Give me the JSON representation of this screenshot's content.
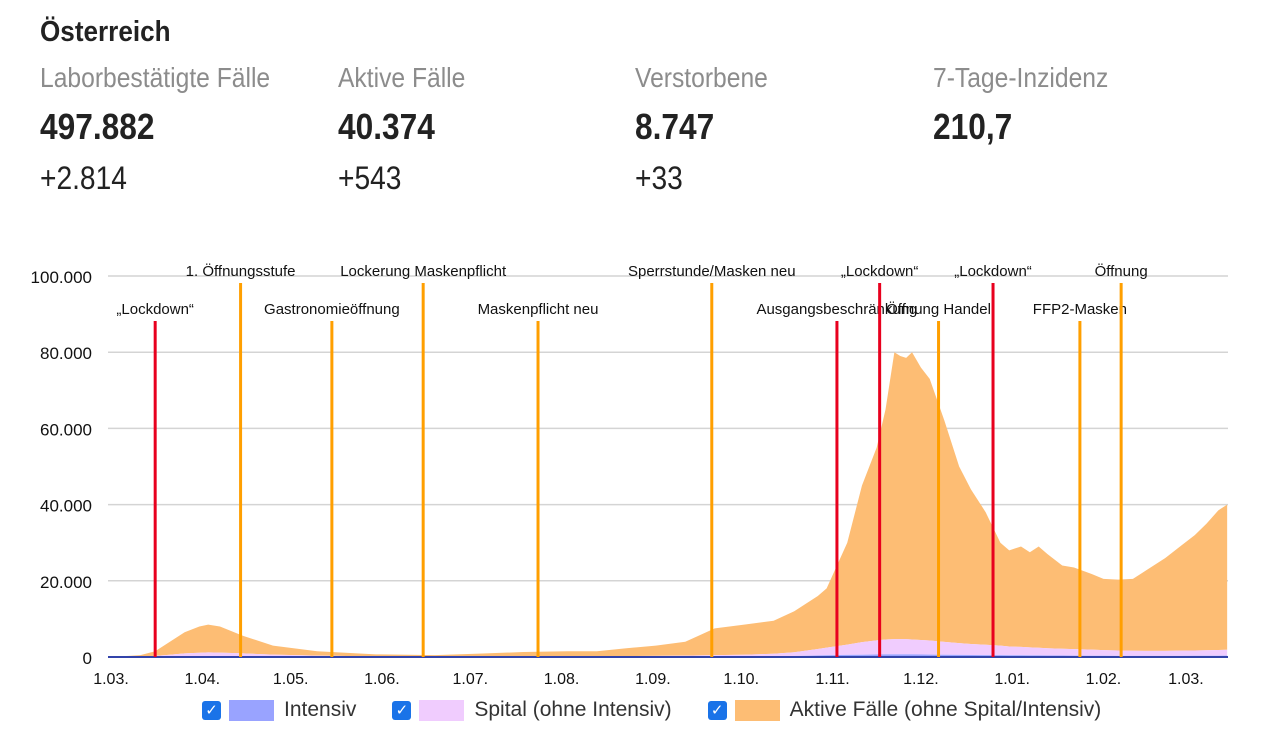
{
  "title": "Österreich",
  "stats": [
    {
      "label": "Laborbestätigte Fälle",
      "value": "497.882",
      "delta": "+2.814"
    },
    {
      "label": "Aktive Fälle",
      "value": "40.374",
      "delta": "+543"
    },
    {
      "label": "Verstorbene",
      "value": "8.747",
      "delta": "+33"
    },
    {
      "label": "7-Tage-Inzidenz",
      "value": "210,7",
      "delta": ""
    }
  ],
  "colors": {
    "intensiv": "#99a3ff",
    "spital": "#f0ccfe",
    "aktiv": "#fdbd74",
    "lockdown": "#e8001e",
    "measure": "#ff9f00",
    "checkbox": "#1a73e8"
  },
  "chart_data": {
    "type": "area",
    "stacked": true,
    "x_unit": "days since 1.03.2020",
    "ylim": [
      0,
      100000
    ],
    "yticks": [
      {
        "v": 0,
        "label": "0"
      },
      {
        "v": 20000,
        "label": "20.000"
      },
      {
        "v": 40000,
        "label": "40.000"
      },
      {
        "v": 60000,
        "label": "60.000"
      },
      {
        "v": 80000,
        "label": "80.000"
      },
      {
        "v": 100000,
        "label": "100.000"
      }
    ],
    "xticks": [
      {
        "d": 0,
        "label": "1.03."
      },
      {
        "d": 31,
        "label": "1.04."
      },
      {
        "d": 61,
        "label": "1.05."
      },
      {
        "d": 92,
        "label": "1.06."
      },
      {
        "d": 122,
        "label": "1.07."
      },
      {
        "d": 153,
        "label": "1.08."
      },
      {
        "d": 184,
        "label": "1.09."
      },
      {
        "d": 214,
        "label": "1.10."
      },
      {
        "d": 245,
        "label": "1.11."
      },
      {
        "d": 275,
        "label": "1.12."
      },
      {
        "d": 306,
        "label": "1.01."
      },
      {
        "d": 337,
        "label": "1.02."
      },
      {
        "d": 365,
        "label": "1.03."
      }
    ],
    "x": [
      0,
      10,
      15,
      20,
      25,
      30,
      33,
      37,
      45,
      55,
      70,
      90,
      110,
      125,
      140,
      155,
      165,
      175,
      185,
      195,
      205,
      215,
      225,
      232,
      240,
      243,
      250,
      255,
      260,
      263,
      266,
      268,
      270,
      272,
      275,
      278,
      283,
      288,
      292,
      297,
      302,
      305,
      309,
      312,
      315,
      318,
      323,
      327,
      333,
      337,
      342,
      347,
      352,
      358,
      363,
      368,
      372,
      376,
      379
    ],
    "series": [
      {
        "name": "Intensiv",
        "key": "intensiv",
        "values": [
          0,
          10,
          30,
          80,
          150,
          220,
          250,
          250,
          200,
          120,
          60,
          20,
          10,
          15,
          20,
          20,
          25,
          30,
          40,
          60,
          80,
          100,
          150,
          250,
          400,
          450,
          550,
          600,
          650,
          700,
          700,
          700,
          700,
          680,
          650,
          620,
          580,
          550,
          520,
          500,
          480,
          460,
          450,
          430,
          420,
          400,
          380,
          360,
          340,
          320,
          310,
          300,
          300,
          300,
          310,
          320,
          330,
          340,
          350
        ]
      },
      {
        "name": "Spital (ohne Intensiv)",
        "key": "spital",
        "values": [
          0,
          100,
          250,
          500,
          800,
          900,
          950,
          900,
          750,
          500,
          300,
          150,
          100,
          100,
          120,
          130,
          150,
          200,
          250,
          300,
          400,
          500,
          700,
          1000,
          1700,
          2000,
          2700,
          3300,
          3700,
          3900,
          4000,
          4000,
          4000,
          3900,
          3800,
          3700,
          3400,
          3100,
          2900,
          2700,
          2500,
          2300,
          2200,
          2100,
          2000,
          1900,
          1800,
          1700,
          1600,
          1500,
          1400,
          1350,
          1300,
          1300,
          1350,
          1400,
          1450,
          1500,
          1550
        ]
      },
      {
        "name": "Aktive Fälle (ohne Spital/Intensiv)",
        "key": "aktiv",
        "values": [
          0,
          390,
          1220,
          3420,
          5550,
          6880,
          7300,
          6850,
          4550,
          2380,
          1140,
          530,
          390,
          785,
          1160,
          1350,
          1325,
          2070,
          2710,
          3640,
          7020,
          7900,
          8650,
          10750,
          13900,
          15550,
          26750,
          41100,
          50650,
          60400,
          75300,
          74300,
          73800,
          75420,
          71550,
          68680,
          58020,
          46350,
          40580,
          34800,
          27020,
          25240,
          26350,
          24970,
          26580,
          24700,
          21820,
          21440,
          19860,
          18680,
          18590,
          18850,
          21400,
          24400,
          27340,
          30280,
          33220,
          36660,
          38100
        ]
      }
    ],
    "events": [
      {
        "label": "„Lockdown“",
        "d": 15,
        "type": "lockdown",
        "row": 2
      },
      {
        "label": "1. Öffnungsstufe",
        "d": 44,
        "type": "measure",
        "row": 1
      },
      {
        "label": "Gastronomieöffnung",
        "d": 75,
        "type": "measure",
        "row": 2
      },
      {
        "label": "Lockerung Maskenpflicht",
        "d": 106,
        "type": "measure",
        "row": 1
      },
      {
        "label": "Maskenpflicht neu",
        "d": 145,
        "type": "measure",
        "row": 2
      },
      {
        "label": "Sperrstunde/Masken neu",
        "d": 204,
        "type": "measure",
        "row": 1
      },
      {
        "label": "Ausgangsbeschränkung",
        "d": 246.5,
        "type": "lockdown",
        "row": 2
      },
      {
        "label": "„Lockdown“",
        "d": 261,
        "type": "lockdown",
        "row": 1
      },
      {
        "label": "Öffnung Handel",
        "d": 281,
        "type": "measure",
        "row": 2
      },
      {
        "label": "„Lockdown“",
        "d": 299.5,
        "type": "lockdown",
        "row": 1
      },
      {
        "label": "FFP2-Masken",
        "d": 329,
        "type": "measure",
        "row": 2
      },
      {
        "label": "Öffnung",
        "d": 343,
        "type": "measure",
        "row": 1
      }
    ],
    "legend": [
      {
        "label": "Intensiv",
        "key": "intensiv",
        "checked": true
      },
      {
        "label": "Spital (ohne Intensiv)",
        "key": "spital",
        "checked": true
      },
      {
        "label": "Aktive Fälle (ohne Spital/Intensiv)",
        "key": "aktiv",
        "checked": true
      }
    ]
  }
}
